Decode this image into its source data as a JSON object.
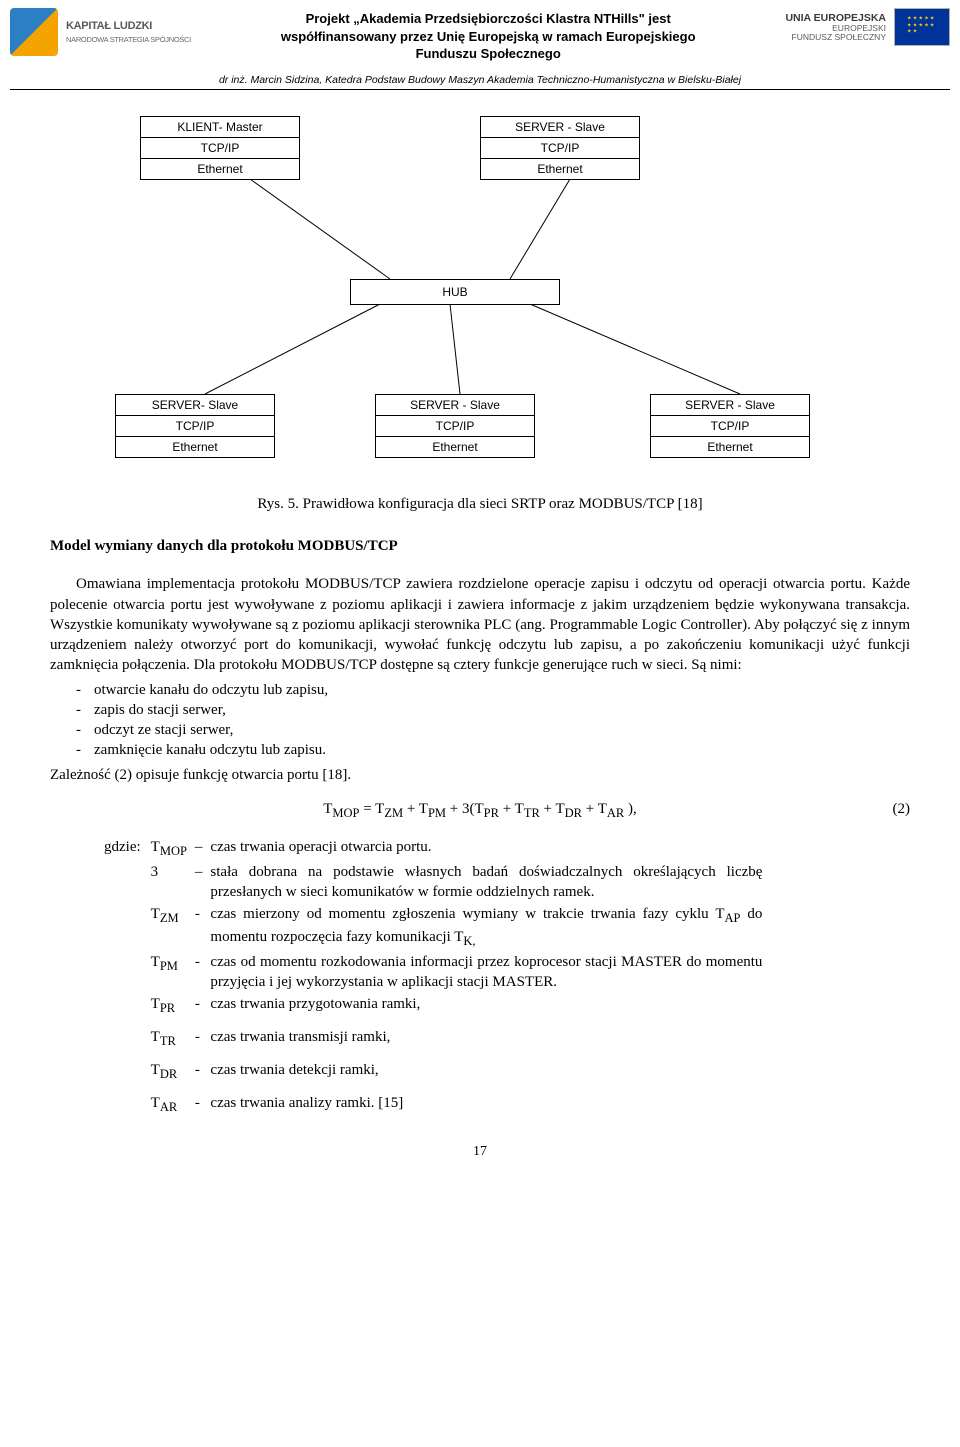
{
  "header": {
    "left": {
      "logo_title": "KAPITAŁ LUDZKI",
      "logo_subtitle": "NARODOWA STRATEGIA SPÓJNOŚCI"
    },
    "center": "Projekt „Akademia Przedsiębiorczości Klastra NTHills\" jest współfinansowany przez Unię Europejską w ramach Europejskiego Funduszu Społecznego",
    "right": {
      "line1": "UNIA EUROPEJSKA",
      "line2": "EUROPEJSKI",
      "line3": "FUNDUSZ SPOŁECZNY"
    }
  },
  "byline": "dr inż. Marcin Sidzina, Katedra Podstaw Budowy Maszyn Akademia Techniczno-Humanistyczna w Bielsku-Białej",
  "diagram": {
    "hub": "HUB",
    "top_left": {
      "l1": "KLIENT- Master",
      "l2": "TCP/IP",
      "l3": "Ethernet"
    },
    "top_right": {
      "l1": "SERVER - Slave",
      "l2": "TCP/IP",
      "l3": "Ethernet"
    },
    "bot_left": {
      "l1": "SERVER- Slave",
      "l2": "TCP/IP",
      "l3": "Ethernet"
    },
    "bot_mid": {
      "l1": "SERVER - Slave",
      "l2": "TCP/IP",
      "l3": "Ethernet"
    },
    "bot_right": {
      "l1": "SERVER - Slave",
      "l2": "TCP/IP",
      "l3": "Ethernet"
    },
    "caption": "Rys. 5. Prawidłowa konfiguracja dla sieci SRTP oraz MODBUS/TCP [18]"
  },
  "section_title": "Model wymiany danych dla protokołu MODBUS/TCP",
  "para1": "Omawiana implementacja protokołu MODBUS/TCP zawiera rozdzielone operacje zapisu i odczytu od operacji otwarcia portu. Każde polecenie otwarcia portu jest wywoływane z poziomu aplikacji i zawiera informacje z jakim urządzeniem będzie wykonywana transakcja. Wszystkie komunikaty wywoływane są z poziomu aplikacji sterownika PLC (ang. Programmable Logic Controller). Aby połączyć się z innym urządzeniem należy otworzyć port do komunikacji, wywołać funkcję odczytu lub zapisu, a po zakończeniu komunikacji użyć funkcji zamknięcia połączenia. Dla protokołu MODBUS/TCP dostępne są cztery funkcje generujące ruch w sieci. Są nimi:",
  "bullets": [
    "otwarcie kanału do odczytu lub zapisu,",
    "zapis do stacji serwer,",
    "odczyt ze stacji serwer,",
    "zamknięcie kanału odczytu lub zapisu."
  ],
  "para2": "Zależność (2) opisuje funkcję otwarcia portu [18].",
  "formula_html": "T<sub>MOP</sub> = T<sub>ZM</sub> + T<sub>PM</sub> + 3(T<sub>PR</sub> + T<sub>TR</sub> + T<sub>DR</sub> + T<sub>AR</sub> ),",
  "eqnum": "(2)",
  "gdzie": "gdzie:",
  "defs": [
    {
      "sym": "T<sub>MOP</sub>",
      "dash": "–",
      "desc": "czas trwania operacji otwarcia portu."
    },
    {
      "sym": "3",
      "dash": "–",
      "desc": "stała dobrana na podstawie własnych badań doświadczalnych określających liczbę przesłanych w sieci komunikatów w formie oddzielnych ramek."
    },
    {
      "sym": "T<sub>ZM</sub>",
      "dash": "-",
      "desc": "czas mierzony od momentu zgłoszenia wymiany w trakcie trwania fazy cyklu T<sub>AP</sub> do momentu rozpoczęcia fazy komunikacji T<sub>K,</sub>"
    },
    {
      "sym": "T<sub>PM</sub>",
      "dash": "-",
      "desc": "czas od momentu rozkodowania informacji przez koprocesor stacji MASTER do momentu przyjęcia i jej wykorzystania  w aplikacji stacji MASTER."
    },
    {
      "sym": "T<sub>PR</sub>",
      "dash": "-",
      "desc": "czas trwania przygotowania ramki,"
    },
    {
      "sym": "T<sub>TR</sub>",
      "dash": "-",
      "desc": "czas trwania transmisji ramki,"
    },
    {
      "sym": "T<sub>DR</sub>",
      "dash": "-",
      "desc": "czas trwania detekcji ramki,"
    },
    {
      "sym": "T<sub>AR</sub>",
      "dash": "-",
      "desc": "czas trwania analizy ramki. [15]"
    }
  ],
  "page_number": "17"
}
